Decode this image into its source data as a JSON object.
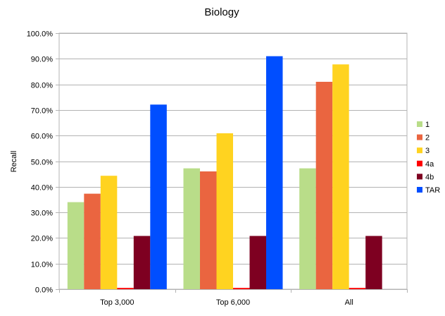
{
  "chart_data": {
    "type": "bar",
    "title": "Biology",
    "xlabel": "",
    "ylabel": "Recall",
    "ylim": [
      0,
      100
    ],
    "ytick_step": 10,
    "ytick_labels": [
      "0.0%",
      "10.0%",
      "20.0%",
      "30.0%",
      "40.0%",
      "50.0%",
      "60.0%",
      "70.0%",
      "80.0%",
      "90.0%",
      "100.0%"
    ],
    "grid": true,
    "legend_position": "right",
    "categories": [
      "Top 3,000",
      "Top 6,000",
      "All"
    ],
    "series": [
      {
        "name": "1",
        "color": "#b9dd89",
        "values": [
          34.0,
          47.2,
          47.2
        ]
      },
      {
        "name": "2",
        "color": "#ea6540",
        "values": [
          37.3,
          46.0,
          81.0
        ]
      },
      {
        "name": "3",
        "color": "#ffd320",
        "values": [
          44.3,
          60.9,
          87.8
        ]
      },
      {
        "name": "4a",
        "color": "#ff0000",
        "values": [
          0.5,
          0.5,
          0.5
        ]
      },
      {
        "name": "4b",
        "color": "#7e0021",
        "values": [
          20.8,
          20.8,
          20.8
        ]
      },
      {
        "name": "TAR",
        "color": "#004eff",
        "values": [
          72.1,
          91.0,
          null
        ]
      }
    ]
  }
}
